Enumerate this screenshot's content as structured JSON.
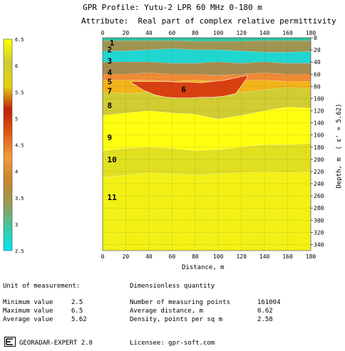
{
  "header": {
    "title": "GPR Profile: Yutu-2 LPR 60 MHz 0-180 m",
    "attribute": "Attribute:  Real part of complex relative permittivity"
  },
  "colors": {
    "scale": [
      "#00e5f5",
      "#3dc9a0",
      "#9a9a55",
      "#c8862e",
      "#f09a3a",
      "#e05a10",
      "#c0200a",
      "#e8d010",
      "#cccc33",
      "#ffff00"
    ],
    "layer_1": "#2ec4a0",
    "layer_2": "#a09452",
    "layer_3": "#20d6d0",
    "layer_4": "#a58c4e",
    "layer_5": "#f08a35",
    "layer_6": "#d94010",
    "layer_7": "#f2b418",
    "layer_8": "#d0cc32",
    "layer_9": "#ffff10",
    "layer_10": "#e0e020",
    "layer_11": "#f2f015"
  },
  "chart_data": {
    "type": "heatmap",
    "title": "GPR Profile: Yutu-2 LPR 60 MHz 0-180 m",
    "subtitle": "Attribute:  Real part of complex relative permittivity",
    "xlabel": "Distance, m",
    "ylabel": "Depth, m  ( ε' = 5.62)",
    "xlim": [
      0,
      180
    ],
    "ylim": [
      0,
      350
    ],
    "x_ticks": [
      "0",
      "20",
      "40",
      "60",
      "80",
      "100",
      "120",
      "140",
      "160",
      "180"
    ],
    "y_ticks": [
      "0",
      "20",
      "40",
      "60",
      "80",
      "100",
      "120",
      "140",
      "160",
      "180",
      "200",
      "220",
      "240",
      "260",
      "280",
      "300",
      "320",
      "340"
    ],
    "colorbar": {
      "range": [
        2.5,
        6.5
      ],
      "ticks": [
        "2.5",
        "3",
        "3.5",
        "4",
        "4.5",
        "5",
        "5.5",
        "6",
        "6.5"
      ]
    },
    "grid": true,
    "layer_labels": [
      "1",
      "2",
      "3",
      "4",
      "5",
      "6",
      "7",
      "8",
      "9",
      "10",
      "11"
    ],
    "layers": [
      {
        "label": "1",
        "top": 0,
        "bottom": [
          5,
          5,
          5,
          5,
          6,
          6,
          6,
          5,
          5,
          5
        ],
        "value": 3.1
      },
      {
        "label": "2",
        "bottom": [
          22,
          22,
          20,
          18,
          20,
          20,
          22,
          24,
          24,
          23
        ],
        "value": 3.7
      },
      {
        "label": "3",
        "bottom": [
          40,
          40,
          40,
          42,
          42,
          40,
          42,
          40,
          42,
          42
        ],
        "value": 2.9
      },
      {
        "label": "4",
        "bottom": [
          60,
          60,
          58,
          60,
          60,
          62,
          60,
          58,
          60,
          60
        ],
        "value": 4.2
      },
      {
        "label": "5",
        "bottom": [
          70,
          70,
          70,
          72,
          70,
          72,
          70,
          70,
          72,
          72
        ],
        "value": 5.0
      },
      {
        "label": "7",
        "bottom": [
          90,
          92,
          90,
          90,
          92,
          90,
          90,
          86,
          82,
          84
        ],
        "value": 5.8
      },
      {
        "label": "8",
        "bottom": [
          128,
          124,
          120,
          124,
          126,
          134,
          128,
          120,
          114,
          116
        ],
        "value": 5.2
      },
      {
        "label": "9",
        "bottom": [
          186,
          182,
          180,
          182,
          186,
          184,
          180,
          176,
          176,
          174
        ],
        "value": 6.5
      },
      {
        "label": "10",
        "bottom": [
          230,
          226,
          222,
          224,
          226,
          224,
          222,
          220,
          222,
          220
        ],
        "value": 6.1
      },
      {
        "label": "11",
        "bottom": [
          350,
          350,
          350,
          350,
          350,
          350,
          350,
          350,
          350,
          350
        ],
        "value": 6.3
      }
    ],
    "inclusion": {
      "label": "6",
      "x": [
        25,
        35,
        45,
        55,
        65,
        75,
        85,
        95,
        105,
        115,
        125
      ],
      "top": [
        72,
        72,
        72,
        72,
        73,
        73,
        74,
        72,
        70,
        66,
        62
      ],
      "bottom": [
        74,
        86,
        94,
        98,
        99,
        99,
        98,
        98,
        96,
        92,
        66
      ],
      "value": 6.0
    }
  },
  "info": {
    "unit_label": "Unit of measurement:",
    "unit_value": "Dimensionless quantity",
    "min_label": "Minimum value",
    "min_value": "2.5",
    "max_label": "Maximum value",
    "max_value": "6.5",
    "avg_label": "Average value",
    "avg_value": "5.62",
    "points_label": "Number of measuring points",
    "points_value": "161004",
    "dist_label": "Average distance, m",
    "dist_value": "0.62",
    "density_label": "Density, points per sq m",
    "density_value": "2.58"
  },
  "footer": {
    "app": "GEORADAR-EXPERT 2.0",
    "license": "Licensee: gpr-soft.com"
  }
}
